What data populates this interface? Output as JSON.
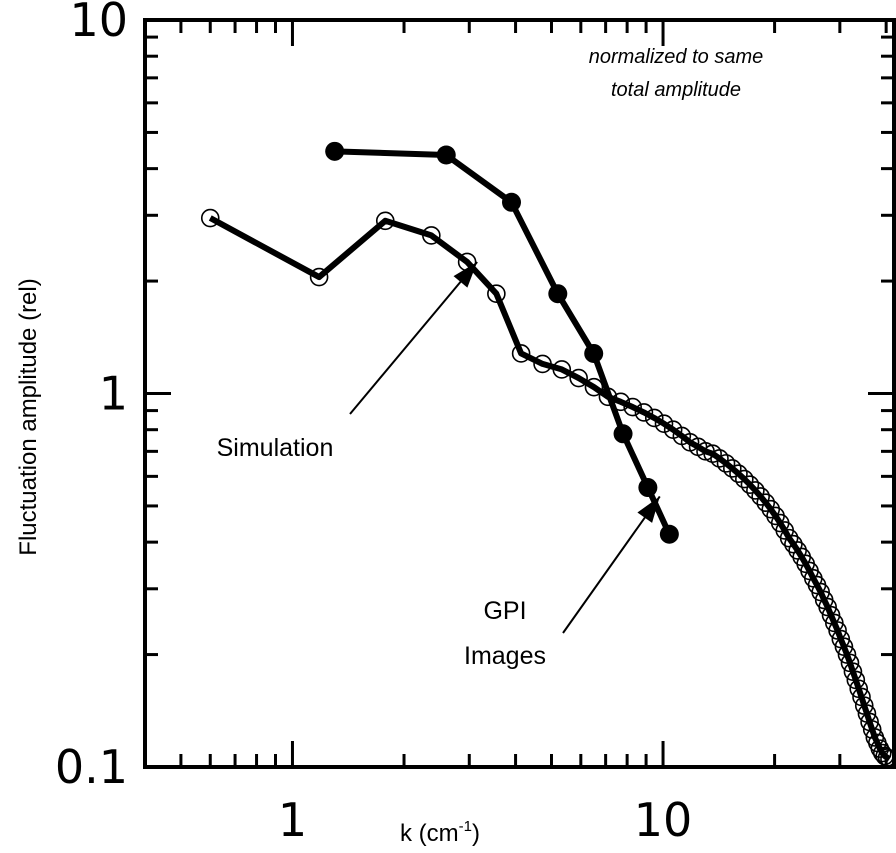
{
  "chart_data": {
    "type": "line",
    "x_scale": "log",
    "y_scale": "log",
    "xlim": [
      0.4,
      42
    ],
    "ylim": [
      0.1,
      10
    ],
    "xlabel": "k (cm",
    "xlabel_sup": "-1",
    "xlabel_suffix": ")",
    "ylabel": "Fluctuation amplitude (rel)",
    "x_tick_labels": [
      {
        "value": 1,
        "label": "1"
      },
      {
        "value": 10,
        "label": "10"
      }
    ],
    "y_tick_labels": [
      {
        "value": 0.1,
        "label": "0.1"
      },
      {
        "value": 1,
        "label": "1"
      },
      {
        "value": 10,
        "label": "10"
      }
    ],
    "note_lines": [
      "normalized to same",
      "total amplitude"
    ],
    "annotations": [
      {
        "lines": [
          "Simulation"
        ],
        "points_to": [
          3.15,
          2.25
        ]
      },
      {
        "lines": [
          "GPI",
          "Images"
        ],
        "points_to": [
          9.8,
          0.53
        ]
      }
    ],
    "series": [
      {
        "label": "gpi",
        "marker": "filled-circle",
        "x": [
          1.3,
          2.6,
          3.9,
          5.2,
          6.5,
          7.8,
          9.1,
          10.4
        ],
        "y": [
          4.45,
          4.35,
          3.25,
          1.85,
          1.28,
          0.78,
          0.56,
          0.42
        ]
      },
      {
        "label": "simulation",
        "marker": "open-circle",
        "x": [
          0.6,
          1.18,
          1.78,
          2.37,
          2.96,
          3.55,
          4.14,
          4.73,
          5.33,
          5.92,
          6.51,
          7.1,
          7.69,
          8.28,
          8.88,
          9.47,
          10.06,
          10.65,
          11.24,
          11.83,
          12.43,
          13.02,
          13.61,
          14.2,
          14.79,
          15.38,
          15.98,
          16.57,
          17.16,
          17.75,
          18.34,
          18.93,
          19.53,
          20.12,
          20.71,
          21.3,
          21.89,
          22.48,
          23.08,
          23.67,
          24.26,
          24.85,
          25.44,
          26.03,
          26.63,
          27.22,
          27.81,
          28.4,
          28.99,
          29.58,
          30.18,
          30.77,
          31.36,
          31.95,
          32.54,
          33.13,
          33.73,
          34.32,
          34.91,
          35.5,
          36.09,
          36.68,
          37.28,
          37.87,
          38.46,
          39.05,
          39.64,
          40.23,
          40.83
        ],
        "y": [
          2.95,
          2.05,
          2.9,
          2.65,
          2.25,
          1.85,
          1.28,
          1.2,
          1.16,
          1.1,
          1.04,
          0.98,
          0.95,
          0.92,
          0.89,
          0.86,
          0.83,
          0.8,
          0.77,
          0.74,
          0.72,
          0.7,
          0.69,
          0.67,
          0.65,
          0.63,
          0.61,
          0.59,
          0.57,
          0.55,
          0.53,
          0.51,
          0.49,
          0.47,
          0.45,
          0.43,
          0.41,
          0.395,
          0.38,
          0.365,
          0.35,
          0.335,
          0.32,
          0.307,
          0.294,
          0.28,
          0.268,
          0.255,
          0.243,
          0.232,
          0.22,
          0.21,
          0.2,
          0.19,
          0.18,
          0.171,
          0.162,
          0.154,
          0.146,
          0.139,
          0.132,
          0.126,
          0.12,
          0.116,
          0.112,
          0.109,
          0.107,
          0.106,
          0.105
        ]
      }
    ]
  }
}
